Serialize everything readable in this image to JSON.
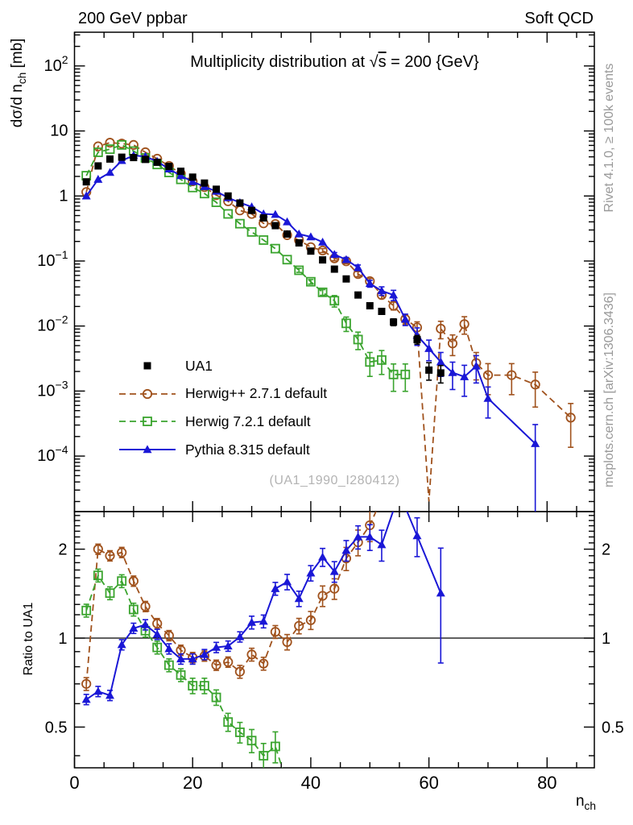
{
  "header": {
    "left": "200 GeV ppbar",
    "right": "Soft QCD"
  },
  "plot": {
    "title_pre": "Multiplicity distribution at ",
    "title_sqrt": "√",
    "title_sqrt_arg": "s",
    "title_post": " = 200 {GeV}",
    "watermark": "(UA1_1990_I280412)",
    "side_note_top": "Rivet 4.1.0, ≥ 100k events",
    "side_note_bottom": "mcplots.cern.ch [arXiv:1306.3436]",
    "y_label": {
      "pre": "dσ/d n",
      "sub": "ch",
      "post": " [mb]"
    },
    "x_label": {
      "pre": "n",
      "sub": "ch"
    },
    "ratio_label": "Ratio to UA1"
  },
  "colors": {
    "data": "#000000",
    "herwigpp": "#a0521d",
    "herwig7": "#3aa42e",
    "pythia": "#1a17d6",
    "annotation_gray": "#999999",
    "watermark_gray": "#b3b3b3"
  },
  "legend": [
    {
      "id": "ua1",
      "label": "UA1",
      "marker": "square-filled",
      "line": "none",
      "color": "#000000"
    },
    {
      "id": "herwigpp",
      "label": "Herwig++ 2.7.1 default",
      "marker": "circle-open",
      "line": "dashed",
      "color": "#a0521d"
    },
    {
      "id": "herwig7",
      "label": "Herwig 7.2.1 default",
      "marker": "square-open",
      "line": "dashed",
      "color": "#3aa42e"
    },
    {
      "id": "pythia",
      "label": "Pythia 8.315 default",
      "marker": "triangle-filled",
      "line": "solid",
      "color": "#1a17d6"
    }
  ],
  "chart_data": [
    {
      "type": "scatter",
      "panel": "main",
      "title": "Multiplicity distribution at √s = 200 GeV",
      "xlabel": "n_ch",
      "ylabel": "dσ/d n_ch [mb]",
      "x_axis": {
        "min": 0,
        "max": 88,
        "major_ticks": [
          0,
          20,
          40,
          60,
          80
        ],
        "minor_step": 5,
        "tick_labels_visible": false
      },
      "y_axis": {
        "scale": "log",
        "min": 1.4e-05,
        "max": 330,
        "labeled_exponents": [
          2,
          1,
          0,
          -1,
          -2,
          -3,
          -4
        ]
      },
      "grid": false,
      "series": [
        {
          "name": "Herwig++ 2.7.1 default",
          "color": "#a0521d",
          "marker": "circle-open",
          "line": "dashed",
          "x": [
            2,
            4,
            6,
            8,
            10,
            12,
            14,
            16,
            18,
            20,
            22,
            24,
            26,
            28,
            30,
            32,
            34,
            36,
            38,
            40,
            42,
            44,
            46,
            48,
            50,
            52,
            54,
            56,
            58,
            62,
            64,
            66,
            68,
            70,
            74,
            78,
            84
          ],
          "y": [
            1.15,
            5.8,
            6.6,
            6.4,
            6.1,
            4.7,
            3.74,
            2.9,
            2.2,
            1.68,
            1.37,
            1.03,
            0.83,
            0.6,
            0.53,
            0.38,
            0.37,
            0.25,
            0.21,
            0.163,
            0.145,
            0.11,
            0.099,
            0.063,
            0.049,
            0.03,
            0.0205,
            0.0128,
            0.0095,
            0.0091,
            0.0054,
            0.0107,
            0.0027,
            0.00176,
            0.00176,
            0.00126,
            0.00039
          ],
          "err_rel": [
            0.04,
            0.04,
            0.04,
            0.04,
            0.04,
            0.04,
            0.04,
            0.04,
            0.04,
            0.04,
            0.04,
            0.04,
            0.04,
            0.04,
            0.04,
            0.05,
            0.05,
            0.05,
            0.06,
            0.06,
            0.07,
            0.08,
            0.08,
            0.09,
            0.1,
            0.12,
            0.14,
            0.17,
            0.22,
            0.3,
            0.35,
            0.3,
            0.45,
            0.5,
            0.5,
            0.55,
            0.65
          ],
          "line_x": [
            2,
            4,
            6,
            8,
            10,
            12,
            14,
            16,
            18,
            20,
            22,
            24,
            26,
            28,
            30,
            32,
            34,
            36,
            38,
            40,
            42,
            44,
            46,
            48,
            50,
            52,
            54,
            56,
            58,
            60,
            62,
            64,
            66,
            68,
            70,
            74,
            78,
            84
          ],
          "line_y": [
            1.15,
            5.8,
            6.6,
            6.4,
            6.1,
            4.7,
            3.74,
            2.9,
            2.2,
            1.68,
            1.37,
            1.03,
            0.83,
            0.6,
            0.53,
            0.38,
            0.37,
            0.25,
            0.21,
            0.163,
            0.145,
            0.11,
            0.099,
            0.063,
            0.049,
            0.03,
            0.0205,
            0.0128,
            0.0095,
            2e-05,
            0.0091,
            0.0054,
            0.0107,
            0.0027,
            0.00176,
            0.00176,
            0.00126,
            0.00039
          ]
        },
        {
          "name": "Herwig 7.2.1 default",
          "color": "#3aa42e",
          "marker": "square-open",
          "line": "dashed",
          "x": [
            2,
            4,
            6,
            8,
            10,
            12,
            14,
            16,
            18,
            20,
            22,
            24,
            26,
            28,
            30,
            32,
            34,
            36,
            38,
            40,
            42,
            44,
            46,
            48,
            50,
            52,
            54,
            56
          ],
          "y": [
            2.05,
            4.7,
            5.25,
            6.1,
            4.9,
            3.85,
            3.05,
            2.3,
            1.8,
            1.35,
            1.09,
            0.8,
            0.53,
            0.375,
            0.28,
            0.21,
            0.155,
            0.105,
            0.072,
            0.048,
            0.033,
            0.0245,
            0.011,
            0.0062,
            0.0028,
            0.003,
            0.0018,
            0.0018
          ],
          "err_rel": [
            0.04,
            0.04,
            0.04,
            0.04,
            0.04,
            0.04,
            0.04,
            0.04,
            0.04,
            0.04,
            0.04,
            0.04,
            0.04,
            0.04,
            0.05,
            0.05,
            0.05,
            0.06,
            0.07,
            0.08,
            0.1,
            0.2,
            0.25,
            0.3,
            0.4,
            0.4,
            0.45,
            0.45
          ]
        },
        {
          "name": "Pythia 8.315 default",
          "color": "#1a17d6",
          "marker": "triangle-filled",
          "line": "solid",
          "x": [
            2,
            4,
            6,
            8,
            10,
            12,
            14,
            16,
            18,
            20,
            22,
            24,
            26,
            28,
            30,
            32,
            34,
            36,
            38,
            40,
            42,
            44,
            46,
            48,
            50,
            52,
            54,
            56,
            58,
            60,
            62,
            64,
            66,
            68,
            70,
            78
          ],
          "y": [
            1.0,
            1.8,
            2.3,
            3.5,
            4.2,
            4.05,
            3.4,
            2.6,
            2.05,
            1.66,
            1.39,
            1.18,
            0.94,
            0.79,
            0.68,
            0.53,
            0.52,
            0.4,
            0.26,
            0.235,
            0.195,
            0.126,
            0.105,
            0.079,
            0.045,
            0.0348,
            0.03,
            0.0127,
            0.0072,
            0.0045,
            0.0028,
            0.00192,
            0.00166,
            0.00242,
            0.00077,
            0.000155
          ],
          "err_rel": [
            0.03,
            0.03,
            0.03,
            0.03,
            0.03,
            0.03,
            0.03,
            0.03,
            0.03,
            0.03,
            0.03,
            0.03,
            0.03,
            0.03,
            0.03,
            0.04,
            0.04,
            0.04,
            0.05,
            0.05,
            0.06,
            0.07,
            0.08,
            0.1,
            0.12,
            0.15,
            0.18,
            0.2,
            0.3,
            0.35,
            0.4,
            0.45,
            0.5,
            0.45,
            0.5,
            0.97
          ]
        },
        {
          "name": "UA1",
          "role": "reference-data",
          "color": "#000000",
          "marker": "square-filled",
          "line": "none",
          "x": [
            2,
            4,
            6,
            8,
            10,
            12,
            14,
            16,
            18,
            20,
            22,
            24,
            26,
            28,
            30,
            32,
            34,
            36,
            38,
            40,
            42,
            44,
            46,
            48,
            50,
            52,
            54,
            58,
            60,
            62
          ],
          "y": [
            1.65,
            2.9,
            3.7,
            3.95,
            3.9,
            3.65,
            3.3,
            2.85,
            2.4,
            1.95,
            1.58,
            1.27,
            1.0,
            0.78,
            0.6,
            0.46,
            0.35,
            0.26,
            0.19,
            0.142,
            0.104,
            0.075,
            0.053,
            0.03,
            0.0205,
            0.0168,
            0.0115,
            0.0062,
            0.0021,
            0.0019
          ],
          "err_rel": [
            0.04,
            0.04,
            0.04,
            0.04,
            0.04,
            0.04,
            0.04,
            0.04,
            0.04,
            0.04,
            0.04,
            0.04,
            0.04,
            0.04,
            0.04,
            0.04,
            0.05,
            0.05,
            0.05,
            0.05,
            0.06,
            0.06,
            0.07,
            0.08,
            0.09,
            0.1,
            0.12,
            0.15,
            0.3,
            0.3
          ]
        }
      ]
    },
    {
      "type": "ratio",
      "panel": "ratio",
      "ylabel": "Ratio to UA1",
      "reference": "UA1",
      "baseline": 1,
      "x_axis": {
        "min": 0,
        "max": 88,
        "major_ticks": [
          0,
          20,
          40,
          60,
          80
        ],
        "minor_step": 5,
        "tick_labels_visible": true
      },
      "y_axis": {
        "scale": "log",
        "min": 0.364,
        "max": 2.68,
        "labeled_ticks": [
          2,
          1,
          0.5
        ]
      },
      "series": [
        {
          "name": "Herwig++ 2.7.1 default",
          "color": "#a0521d",
          "marker": "circle-open",
          "line": "dashed",
          "x": [
            2,
            4,
            6,
            8,
            10,
            12,
            14,
            16,
            18,
            20,
            22,
            24,
            26,
            28,
            30,
            32,
            34,
            36,
            38,
            40,
            42,
            44,
            46,
            48,
            50
          ],
          "y": [
            0.7,
            2.0,
            1.9,
            1.95,
            1.56,
            1.28,
            1.12,
            1.02,
            0.91,
            0.86,
            0.87,
            0.81,
            0.83,
            0.77,
            0.88,
            0.82,
            1.05,
            0.97,
            1.1,
            1.15,
            1.39,
            1.47,
            1.86,
            2.11,
            2.41
          ],
          "err_rel": [
            0.05,
            0.04,
            0.04,
            0.04,
            0.04,
            0.04,
            0.04,
            0.04,
            0.04,
            0.04,
            0.04,
            0.04,
            0.04,
            0.05,
            0.05,
            0.05,
            0.05,
            0.06,
            0.06,
            0.07,
            0.08,
            0.08,
            0.09,
            0.1,
            0.12
          ],
          "line_x": [
            2,
            4,
            6,
            8,
            10,
            12,
            14,
            16,
            18,
            20,
            22,
            24,
            26,
            28,
            30,
            32,
            34,
            36,
            38,
            40,
            42,
            44,
            46,
            48,
            50,
            53
          ],
          "line_y": [
            0.7,
            2.0,
            1.9,
            1.95,
            1.56,
            1.28,
            1.12,
            1.02,
            0.91,
            0.86,
            0.87,
            0.81,
            0.83,
            0.77,
            0.88,
            0.82,
            1.05,
            0.97,
            1.1,
            1.15,
            1.39,
            1.47,
            1.86,
            2.11,
            2.41,
            3.3
          ]
        },
        {
          "name": "Herwig 7.2.1 default",
          "color": "#3aa42e",
          "marker": "square-open",
          "line": "dashed",
          "x": [
            2,
            4,
            6,
            8,
            10,
            12,
            14,
            16,
            18,
            20,
            22,
            24,
            26,
            28,
            30,
            32,
            34
          ],
          "y": [
            1.24,
            1.63,
            1.42,
            1.56,
            1.25,
            1.06,
            0.93,
            0.81,
            0.75,
            0.69,
            0.69,
            0.63,
            0.52,
            0.48,
            0.45,
            0.4,
            0.43
          ],
          "err_rel": [
            0.05,
            0.05,
            0.05,
            0.05,
            0.05,
            0.05,
            0.05,
            0.05,
            0.05,
            0.06,
            0.06,
            0.06,
            0.07,
            0.08,
            0.09,
            0.1,
            0.12
          ],
          "line_x": [
            2,
            4,
            6,
            8,
            10,
            12,
            14,
            16,
            18,
            20,
            22,
            24,
            26,
            28,
            30,
            32,
            34,
            36.5
          ],
          "line_y": [
            1.24,
            1.63,
            1.42,
            1.56,
            1.25,
            1.06,
            0.93,
            0.81,
            0.75,
            0.69,
            0.69,
            0.63,
            0.52,
            0.48,
            0.45,
            0.4,
            0.43,
            0.3
          ]
        },
        {
          "name": "Pythia 8.315 default",
          "color": "#1a17d6",
          "marker": "triangle-filled",
          "line": "solid",
          "x": [
            2,
            4,
            6,
            8,
            10,
            12,
            14,
            16,
            18,
            20,
            22,
            24,
            26,
            28,
            30,
            32,
            34,
            36,
            38,
            40,
            42,
            44,
            46,
            48,
            50,
            52,
            58,
            62
          ],
          "y": [
            0.62,
            0.66,
            0.64,
            0.95,
            1.08,
            1.11,
            1.03,
            0.92,
            0.85,
            0.85,
            0.88,
            0.93,
            0.94,
            1.01,
            1.13,
            1.14,
            1.47,
            1.55,
            1.36,
            1.66,
            1.88,
            1.68,
            1.98,
            2.2,
            2.2,
            2.07,
            2.22,
            1.42
          ],
          "err_rel": [
            0.04,
            0.04,
            0.04,
            0.04,
            0.04,
            0.04,
            0.04,
            0.04,
            0.04,
            0.04,
            0.04,
            0.04,
            0.04,
            0.04,
            0.05,
            0.05,
            0.05,
            0.06,
            0.06,
            0.06,
            0.07,
            0.08,
            0.08,
            0.09,
            0.1,
            0.12,
            0.15,
            0.42
          ],
          "line_x": [
            2,
            4,
            6,
            8,
            10,
            12,
            14,
            16,
            18,
            20,
            22,
            24,
            26,
            28,
            30,
            32,
            34,
            36,
            38,
            40,
            42,
            44,
            46,
            48,
            50,
            52,
            55,
            58,
            62
          ],
          "line_y": [
            0.62,
            0.66,
            0.64,
            0.95,
            1.08,
            1.11,
            1.03,
            0.92,
            0.85,
            0.85,
            0.88,
            0.93,
            0.94,
            1.01,
            1.13,
            1.14,
            1.47,
            1.55,
            1.36,
            1.66,
            1.88,
            1.68,
            1.98,
            2.2,
            2.2,
            2.07,
            3.1,
            2.22,
            1.42
          ]
        }
      ]
    }
  ]
}
